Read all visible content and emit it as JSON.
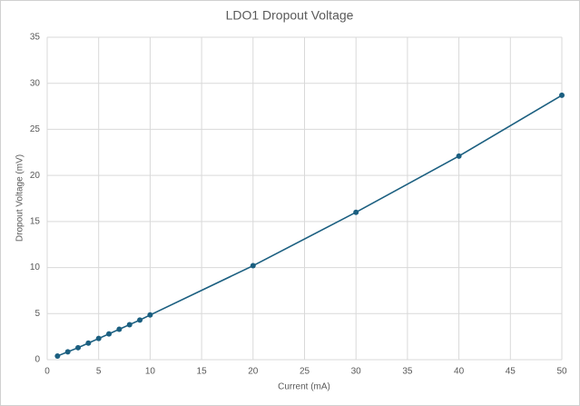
{
  "chart_data": {
    "type": "line",
    "title": "LDO1 Dropout Voltage",
    "x_label": "Current (mA)",
    "y_label": "Dropout Voltage (mV)",
    "x": [
      1,
      2,
      3,
      4,
      5,
      6,
      7,
      8,
      9,
      10,
      20,
      30,
      40,
      50
    ],
    "series": [
      {
        "name": "Dropout Voltage",
        "color": "#1b5f80",
        "values": [
          0.4,
          0.85,
          1.3,
          1.8,
          2.3,
          2.8,
          3.3,
          3.8,
          4.3,
          4.85,
          10.2,
          16,
          22.1,
          28.7
        ]
      }
    ],
    "xlim": [
      0,
      50
    ],
    "xticks": [
      0,
      5,
      10,
      15,
      20,
      25,
      30,
      35,
      40,
      45,
      50
    ],
    "ylim": [
      0,
      35
    ],
    "yticks": [
      0,
      5,
      10,
      15,
      20,
      25,
      30,
      35
    ],
    "grid": true
  }
}
